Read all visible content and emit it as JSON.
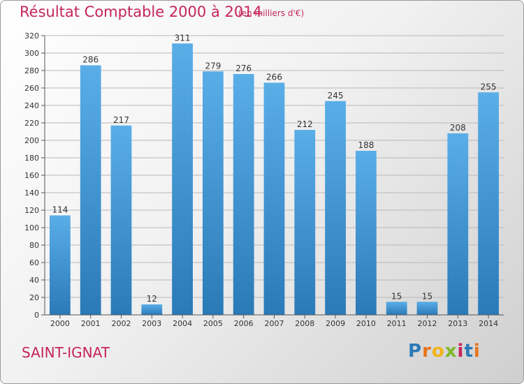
{
  "chart_data": {
    "type": "bar",
    "title": "Résultat Comptable 2000 à 2014",
    "subtitle": "(en milliers d'€)",
    "categories": [
      "2000",
      "2001",
      "2002",
      "2003",
      "2004",
      "2005",
      "2006",
      "2007",
      "2008",
      "2009",
      "2010",
      "2011",
      "2012",
      "2013",
      "2014"
    ],
    "values": [
      114,
      286,
      217,
      12,
      311,
      279,
      276,
      266,
      212,
      245,
      188,
      15,
      15,
      208,
      255
    ],
    "ylim": [
      0,
      320
    ],
    "yticks": [
      0,
      20,
      40,
      60,
      80,
      100,
      120,
      140,
      160,
      180,
      200,
      220,
      240,
      260,
      280,
      300,
      320
    ],
    "grid": true,
    "bar_color_top": "#5aaee8",
    "bar_color_bottom": "#2a7ab8"
  },
  "footer": {
    "place": "SAINT-IGNAT",
    "logo_letters": [
      "P",
      "r",
      "o",
      "x",
      "i",
      "t",
      "i"
    ],
    "logo_colors": [
      "#2a7ab8",
      "#e8741a",
      "#f2b316",
      "#7cb82a",
      "#c6255a",
      "#2a7ab8",
      "#e8741a"
    ]
  }
}
